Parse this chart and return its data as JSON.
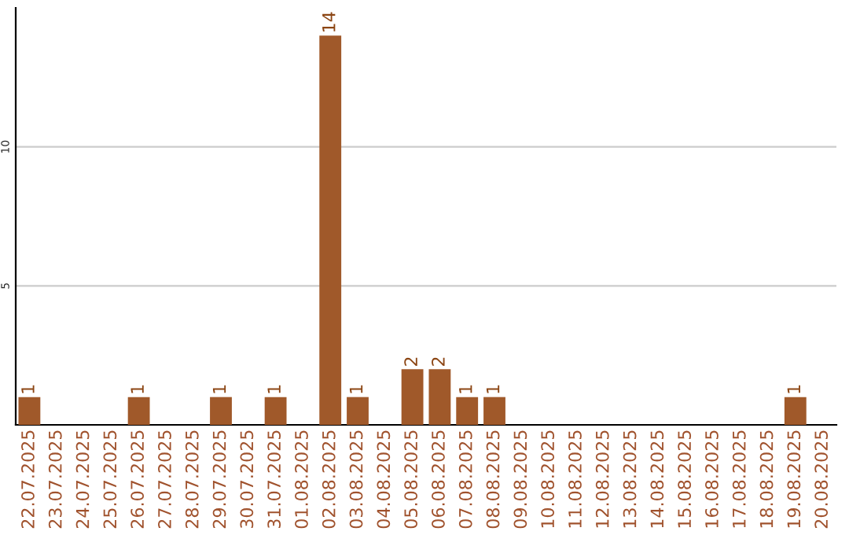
{
  "chart_data": {
    "type": "bar",
    "categories": [
      "22.07.2025",
      "23.07.2025",
      "24.07.2025",
      "25.07.2025",
      "26.07.2025",
      "27.07.2025",
      "28.07.2025",
      "29.07.2025",
      "30.07.2025",
      "31.07.2025",
      "01.08.2025",
      "02.08.2025",
      "03.08.2025",
      "04.08.2025",
      "05.08.2025",
      "06.08.2025",
      "07.08.2025",
      "08.08.2025",
      "09.08.2025",
      "10.08.2025",
      "11.08.2025",
      "12.08.2025",
      "13.08.2025",
      "14.08.2025",
      "15.08.2025",
      "16.08.2025",
      "17.08.2025",
      "18.08.2025",
      "19.08.2025",
      "20.08.2025"
    ],
    "values": [
      1,
      0,
      0,
      0,
      1,
      0,
      0,
      1,
      0,
      1,
      0,
      14,
      1,
      0,
      2,
      2,
      1,
      1,
      0,
      0,
      0,
      0,
      0,
      0,
      0,
      0,
      0,
      0,
      1,
      0
    ],
    "value_labels": [
      "1",
      null,
      null,
      null,
      "1",
      null,
      null,
      "1",
      null,
      "1",
      null,
      "14",
      "1",
      null,
      "2",
      "2",
      "1",
      "1",
      null,
      null,
      null,
      null,
      null,
      null,
      null,
      null,
      null,
      null,
      "1",
      null
    ],
    "color": "#a0592a",
    "ylim": [
      0,
      15
    ],
    "yticks": [
      5,
      10
    ],
    "grid": "y"
  }
}
